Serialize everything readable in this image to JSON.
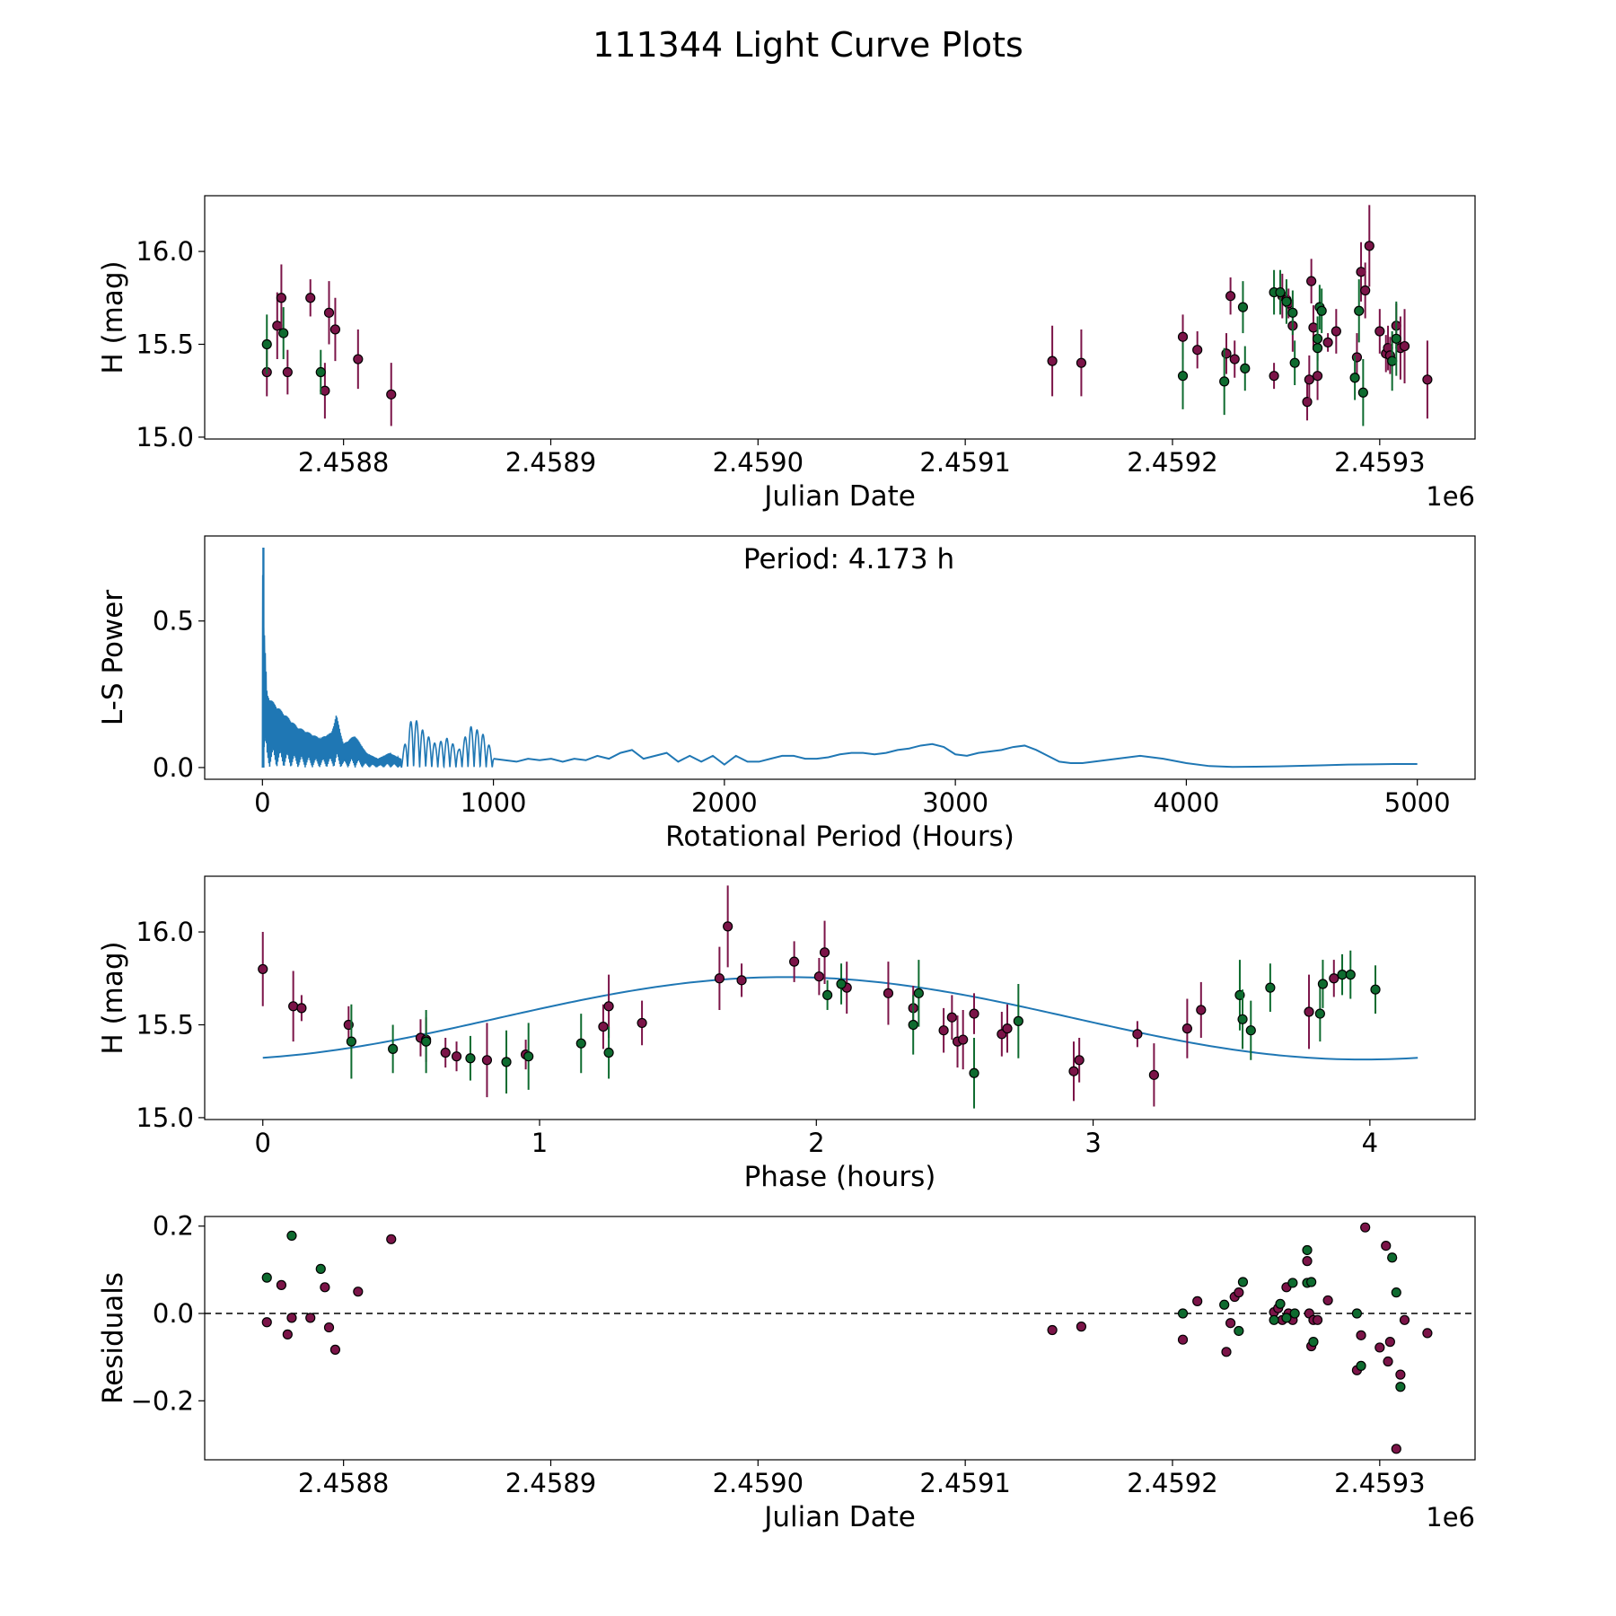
{
  "title": "111344 Light Curve Plots",
  "colors": {
    "r_band": "#7b1448",
    "g_band": "#0e6b2f",
    "curve": "#1f77b4",
    "axis": "#000000"
  },
  "chart_data": [
    {
      "id": "lightcurve",
      "type": "scatter",
      "title": "",
      "xlabel": "Julian Date",
      "ylabel": "H (mag)",
      "offset_text": "1e6",
      "xlim": [
        2458733,
        2459346
      ],
      "ylim": [
        14.99,
        16.3
      ],
      "xticks": [
        2458800,
        2458900,
        2459000,
        2459100,
        2459200,
        2459300
      ],
      "xtick_labels": [
        "2.4588",
        "2.4589",
        "2.4590",
        "2.4591",
        "2.4592",
        "2.4593"
      ],
      "yticks": [
        15.0,
        15.5,
        16.0
      ],
      "ytick_labels": [
        "15.0",
        "15.5",
        "16.0"
      ],
      "series": [
        {
          "name": "r",
          "color_key": "r_band",
          "x": [
            2458763,
            2458768,
            2458770,
            2458773,
            2458784,
            2458791,
            2458793,
            2458796,
            2458807,
            2458823,
            2459142,
            2459156,
            2459205,
            2459212,
            2459226,
            2459228,
            2459230,
            2459249,
            2459253,
            2459255,
            2459256,
            2459258,
            2459265,
            2459266,
            2459267,
            2459268,
            2459270,
            2459275,
            2459279,
            2459289,
            2459291,
            2459293,
            2459295,
            2459300,
            2459303,
            2459304,
            2459305,
            2459308,
            2459310,
            2459312,
            2459323
          ],
          "y": [
            15.35,
            15.6,
            15.75,
            15.35,
            15.75,
            15.25,
            15.67,
            15.58,
            15.42,
            15.23,
            15.41,
            15.4,
            15.54,
            15.47,
            15.45,
            15.76,
            15.42,
            15.33,
            15.76,
            15.74,
            15.72,
            15.6,
            15.19,
            15.31,
            15.84,
            15.59,
            15.33,
            15.51,
            15.57,
            15.43,
            15.89,
            15.79,
            16.03,
            15.57,
            15.45,
            15.48,
            15.44,
            15.6,
            15.48,
            15.49,
            15.31
          ],
          "err": [
            0.13,
            0.18,
            0.18,
            0.12,
            0.1,
            0.15,
            0.17,
            0.17,
            0.16,
            0.17,
            0.19,
            0.18,
            0.12,
            0.1,
            0.11,
            0.1,
            0.1,
            0.07,
            0.12,
            0.08,
            0.08,
            0.14,
            0.1,
            0.13,
            0.12,
            0.12,
            0.13,
            0.05,
            0.12,
            0.13,
            0.16,
            0.15,
            0.22,
            0.12,
            0.1,
            0.12,
            0.1,
            0.12,
            0.17,
            0.2,
            0.21
          ]
        },
        {
          "name": "g",
          "color_key": "g_band",
          "x": [
            2458763,
            2458771,
            2458789,
            2459205,
            2459225,
            2459234,
            2459235,
            2459249,
            2459252,
            2459255,
            2459258,
            2459259,
            2459270,
            2459270,
            2459271,
            2459272,
            2459288,
            2459290,
            2459292,
            2459306,
            2459308
          ],
          "y": [
            15.5,
            15.56,
            15.35,
            15.33,
            15.3,
            15.7,
            15.37,
            15.78,
            15.78,
            15.73,
            15.67,
            15.4,
            15.53,
            15.48,
            15.7,
            15.68,
            15.32,
            15.68,
            15.24,
            15.41,
            15.53
          ],
          "err": [
            0.16,
            0.14,
            0.12,
            0.18,
            0.18,
            0.14,
            0.12,
            0.12,
            0.12,
            0.12,
            0.12,
            0.12,
            0.12,
            0.12,
            0.12,
            0.12,
            0.12,
            0.17,
            0.18,
            0.16,
            0.2
          ]
        }
      ]
    },
    {
      "id": "periodogram",
      "type": "line",
      "title": "",
      "annotation": "Period: 4.173 h",
      "xlabel": "Rotational Period (Hours)",
      "ylabel": "L-S Power",
      "xlim": [
        -250,
        5250
      ],
      "ylim": [
        -0.04,
        0.79
      ],
      "xticks": [
        0,
        1000,
        2000,
        3000,
        4000,
        5000
      ],
      "xtick_labels": [
        "0",
        "1000",
        "2000",
        "3000",
        "4000",
        "5000"
      ],
      "yticks": [
        0.0,
        0.5
      ],
      "ytick_labels": [
        "0.0",
        "0.5"
      ],
      "peak_period_hours": 4.173,
      "peak_power": 0.75,
      "envelope_periods": [
        0,
        5,
        20,
        50,
        100,
        150,
        200,
        250,
        300,
        320,
        350,
        400,
        450,
        500,
        550,
        600,
        650,
        700,
        750,
        800,
        850,
        900,
        950,
        1000,
        1050
      ],
      "envelope_power": [
        0.75,
        0.52,
        0.25,
        0.22,
        0.18,
        0.14,
        0.12,
        0.1,
        0.12,
        0.18,
        0.08,
        0.11,
        0.05,
        0.03,
        0.05,
        0.03,
        0.18,
        0.12,
        0.08,
        0.1,
        0.06,
        0.14,
        0.12,
        0.05,
        0.02
      ],
      "x": [
        1000,
        1100,
        1150,
        1200,
        1250,
        1300,
        1350,
        1400,
        1450,
        1500,
        1550,
        1600,
        1650,
        1700,
        1750,
        1800,
        1850,
        1900,
        1950,
        2000,
        2050,
        2100,
        2150,
        2200,
        2250,
        2300,
        2350,
        2400,
        2450,
        2500,
        2550,
        2600,
        2650,
        2700,
        2750,
        2800,
        2850,
        2900,
        2950,
        3000,
        3050,
        3100,
        3150,
        3200,
        3250,
        3300,
        3350,
        3400,
        3450,
        3500,
        3550,
        3600,
        3700,
        3800,
        3850,
        3900,
        4000,
        4100,
        4200,
        4300,
        4400,
        4500,
        4600,
        4700,
        4800,
        4900,
        5000
      ],
      "y": [
        0.03,
        0.02,
        0.03,
        0.025,
        0.03,
        0.02,
        0.03,
        0.025,
        0.04,
        0.03,
        0.05,
        0.06,
        0.03,
        0.04,
        0.05,
        0.02,
        0.04,
        0.02,
        0.04,
        0.01,
        0.04,
        0.02,
        0.02,
        0.03,
        0.04,
        0.04,
        0.03,
        0.03,
        0.035,
        0.045,
        0.05,
        0.05,
        0.045,
        0.05,
        0.06,
        0.065,
        0.075,
        0.08,
        0.07,
        0.045,
        0.04,
        0.05,
        0.055,
        0.06,
        0.07,
        0.075,
        0.06,
        0.04,
        0.02,
        0.015,
        0.015,
        0.02,
        0.03,
        0.04,
        0.035,
        0.03,
        0.015,
        0.005,
        0.002,
        0.003,
        0.004,
        0.006,
        0.008,
        0.01,
        0.011,
        0.012,
        0.012
      ]
    },
    {
      "id": "phased",
      "type": "scatter",
      "title": "",
      "xlabel": "Phase (hours)",
      "ylabel": "H (mag)",
      "xlim": [
        -0.21,
        4.38
      ],
      "ylim": [
        14.99,
        16.3
      ],
      "xticks": [
        0,
        1,
        2,
        3,
        4
      ],
      "xtick_labels": [
        "0",
        "1",
        "2",
        "3",
        "4"
      ],
      "yticks": [
        15.0,
        15.5,
        16.0
      ],
      "ytick_labels": [
        "15.0",
        "15.5",
        "16.0"
      ],
      "model": {
        "period_hours": 4.173,
        "mean": 15.535,
        "amplitude": 0.222,
        "peak_phase": 1.89
      },
      "series": [
        {
          "name": "r",
          "color_key": "r_band",
          "x": [
            0.0,
            0.11,
            0.14,
            0.31,
            0.57,
            0.59,
            0.66,
            0.7,
            0.81,
            0.95,
            1.23,
            1.25,
            1.37,
            1.65,
            1.68,
            1.73,
            1.92,
            2.01,
            2.03,
            2.11,
            2.26,
            2.35,
            2.46,
            2.49,
            2.51,
            2.53,
            2.57,
            2.67,
            2.69,
            2.93,
            2.95,
            3.16,
            3.22,
            3.34,
            3.39,
            3.78,
            3.87
          ],
          "y": [
            15.8,
            15.6,
            15.59,
            15.5,
            15.43,
            15.42,
            15.35,
            15.33,
            15.31,
            15.34,
            15.49,
            15.6,
            15.51,
            15.75,
            16.03,
            15.74,
            15.84,
            15.76,
            15.89,
            15.7,
            15.67,
            15.59,
            15.47,
            15.54,
            15.41,
            15.42,
            15.56,
            15.45,
            15.48,
            15.25,
            15.31,
            15.45,
            15.23,
            15.48,
            15.58,
            15.57,
            15.75
          ],
          "err": [
            0.2,
            0.19,
            0.07,
            0.1,
            0.1,
            0.12,
            0.08,
            0.08,
            0.2,
            0.08,
            0.12,
            0.17,
            0.12,
            0.17,
            0.22,
            0.09,
            0.11,
            0.1,
            0.17,
            0.14,
            0.17,
            0.12,
            0.12,
            0.12,
            0.14,
            0.16,
            0.11,
            0.12,
            0.13,
            0.16,
            0.12,
            0.07,
            0.17,
            0.16,
            0.15,
            0.2,
            0.1
          ]
        },
        {
          "name": "g",
          "color_key": "g_band",
          "x": [
            0.32,
            0.47,
            0.59,
            0.75,
            0.88,
            0.96,
            1.15,
            1.25,
            2.04,
            2.09,
            2.35,
            2.37,
            2.57,
            2.73,
            3.53,
            3.54,
            3.57,
            3.64,
            3.82,
            3.83,
            3.9,
            3.93,
            4.02
          ],
          "y": [
            15.41,
            15.37,
            15.41,
            15.32,
            15.3,
            15.33,
            15.4,
            15.35,
            15.66,
            15.72,
            15.5,
            15.67,
            15.24,
            15.52,
            15.66,
            15.53,
            15.47,
            15.7,
            15.56,
            15.72,
            15.77,
            15.77,
            15.69
          ],
          "err": [
            0.2,
            0.13,
            0.17,
            0.12,
            0.17,
            0.18,
            0.16,
            0.14,
            0.08,
            0.11,
            0.16,
            0.18,
            0.19,
            0.2,
            0.19,
            0.16,
            0.16,
            0.13,
            0.15,
            0.13,
            0.11,
            0.13,
            0.13
          ]
        }
      ]
    },
    {
      "id": "residuals",
      "type": "scatter",
      "title": "",
      "xlabel": "Julian Date",
      "ylabel": "Residuals",
      "offset_text": "1e6",
      "xlim": [
        2458733,
        2459346
      ],
      "ylim": [
        -0.335,
        0.222
      ],
      "xticks": [
        2458800,
        2458900,
        2459000,
        2459100,
        2459200,
        2459300
      ],
      "xtick_labels": [
        "2.4588",
        "2.4589",
        "2.4590",
        "2.4591",
        "2.4592",
        "2.4593"
      ],
      "yticks": [
        -0.2,
        0.0,
        0.2
      ],
      "ytick_labels": [
        "−0.2",
        "0.0",
        "0.2"
      ],
      "reference_line": 0.0,
      "series": [
        {
          "name": "r",
          "color_key": "r_band",
          "x": [
            2458763,
            2458770,
            2458773,
            2458775,
            2458784,
            2458791,
            2458793,
            2458796,
            2458807,
            2458823,
            2459142,
            2459156,
            2459205,
            2459212,
            2459226,
            2459228,
            2459230,
            2459232,
            2459249,
            2459251,
            2459253,
            2459255,
            2459256,
            2459258,
            2459265,
            2459266,
            2459267,
            2459268,
            2459270,
            2459275,
            2459289,
            2459291,
            2459293,
            2459300,
            2459303,
            2459304,
            2459305,
            2459308,
            2459310,
            2459312,
            2459323
          ],
          "y": [
            -0.02,
            0.065,
            -0.048,
            -0.01,
            -0.01,
            0.06,
            -0.032,
            -0.083,
            0.05,
            0.17,
            -0.038,
            -0.03,
            -0.06,
            0.028,
            -0.088,
            -0.022,
            0.038,
            0.048,
            0.003,
            0.012,
            -0.015,
            0.06,
            0.0,
            -0.015,
            0.12,
            0.0,
            -0.075,
            -0.015,
            -0.015,
            0.03,
            -0.13,
            -0.05,
            0.197,
            -0.078,
            0.155,
            -0.11,
            -0.065,
            -0.31,
            -0.14,
            -0.015,
            -0.045
          ]
        },
        {
          "name": "g",
          "color_key": "g_band",
          "x": [
            2458763,
            2458775,
            2458789,
            2459205,
            2459225,
            2459232,
            2459234,
            2459249,
            2459252,
            2459255,
            2459258,
            2459259,
            2459265,
            2459265,
            2459267,
            2459268,
            2459289,
            2459291,
            2459306,
            2459308,
            2459310
          ],
          "y": [
            0.082,
            0.178,
            0.102,
            0.0,
            0.02,
            -0.04,
            0.072,
            -0.015,
            0.022,
            -0.01,
            0.07,
            0.0,
            0.145,
            0.07,
            0.072,
            -0.065,
            0.0,
            -0.12,
            0.128,
            0.048,
            -0.168
          ]
        }
      ]
    }
  ]
}
